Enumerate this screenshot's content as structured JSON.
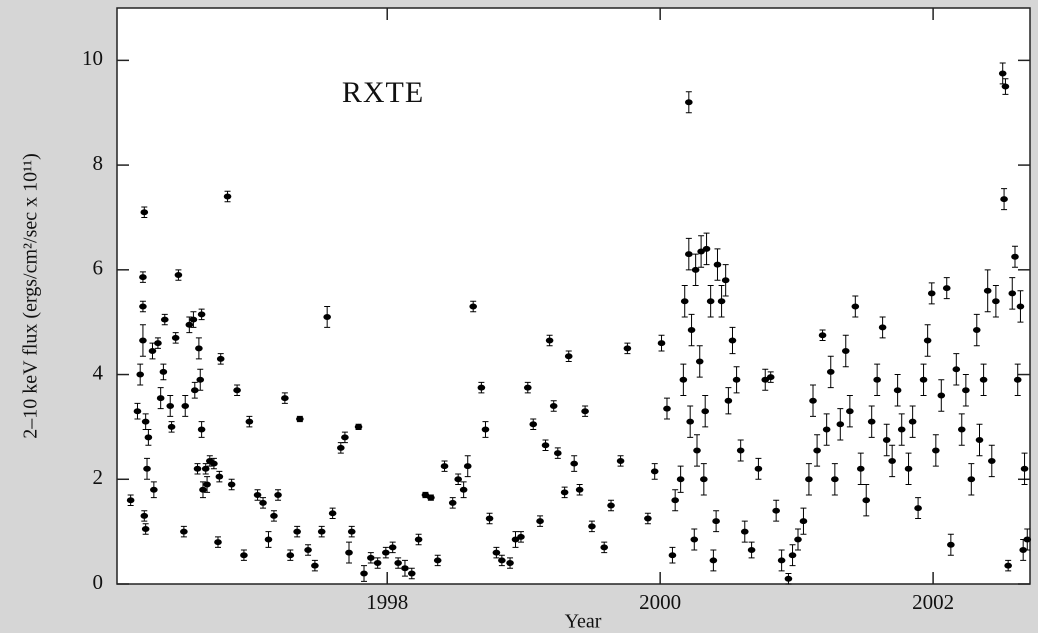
{
  "chart_data": {
    "type": "scatter",
    "annotation": "RXTE",
    "x_label": "Year",
    "y_label": "2–10 keV flux  (ergs/cm²/sec x 10¹¹)",
    "xlim": [
      1996.02,
      2002.71
    ],
    "ylim": [
      0,
      11
    ],
    "xticks": [
      1998,
      2000,
      2002
    ],
    "yticks": [
      0,
      2,
      4,
      6,
      8,
      10
    ],
    "grid": false,
    "color": "#000000",
    "x": [
      1996.12,
      1996.17,
      1996.19,
      1996.21,
      1996.21,
      1996.22,
      1996.21,
      1996.23,
      1996.22,
      1996.23,
      1996.24,
      1996.25,
      1996.28,
      1996.29,
      1996.32,
      1996.34,
      1996.36,
      1996.37,
      1996.41,
      1996.42,
      1996.45,
      1996.47,
      1996.51,
      1996.52,
      1996.55,
      1996.58,
      1996.59,
      1996.61,
      1996.62,
      1996.63,
      1996.64,
      1996.64,
      1996.65,
      1996.67,
      1996.68,
      1996.7,
      1996.73,
      1996.76,
      1996.77,
      1996.78,
      1996.83,
      1996.86,
      1996.9,
      1996.95,
      1996.99,
      1997.05,
      1997.09,
      1997.13,
      1997.17,
      1997.2,
      1997.25,
      1997.29,
      1997.34,
      1997.36,
      1997.42,
      1997.47,
      1997.52,
      1997.56,
      1997.6,
      1997.66,
      1997.69,
      1997.72,
      1997.74,
      1997.79,
      1997.83,
      1997.88,
      1997.93,
      1997.99,
      1998.04,
      1998.08,
      1998.13,
      1998.18,
      1998.23,
      1998.28,
      1998.32,
      1998.37,
      1998.42,
      1998.48,
      1998.52,
      1998.56,
      1998.59,
      1998.63,
      1998.69,
      1998.72,
      1998.75,
      1998.8,
      1998.84,
      1998.9,
      1998.94,
      1998.98,
      1999.03,
      1999.07,
      1999.12,
      1999.16,
      1999.19,
      1999.22,
      1999.25,
      1999.3,
      1999.33,
      1999.37,
      1999.41,
      1999.45,
      1999.5,
      1999.59,
      1999.64,
      1999.71,
      1999.76,
      1999.91,
      1999.96,
      2000.01,
      2000.05,
      2000.09,
      2000.11,
      2000.15,
      2000.17,
      2000.18,
      2000.21,
      2000.21,
      2000.22,
      2000.23,
      2000.25,
      2000.26,
      2000.27,
      2000.29,
      2000.3,
      2000.32,
      2000.33,
      2000.34,
      2000.37,
      2000.39,
      2000.41,
      2000.42,
      2000.45,
      2000.48,
      2000.5,
      2000.53,
      2000.56,
      2000.59,
      2000.62,
      2000.67,
      2000.72,
      2000.77,
      2000.81,
      2000.85,
      2000.89,
      2000.94,
      2000.97,
      2001.01,
      2001.05,
      2001.09,
      2001.12,
      2001.15,
      2001.19,
      2001.22,
      2001.25,
      2001.28,
      2001.32,
      2001.36,
      2001.39,
      2001.43,
      2001.47,
      2001.51,
      2001.55,
      2001.59,
      2001.63,
      2001.66,
      2001.7,
      2001.74,
      2001.77,
      2001.82,
      2001.85,
      2001.89,
      2001.93,
      2001.96,
      2001.99,
      2002.02,
      2002.06,
      2002.1,
      2002.13,
      2002.17,
      2002.21,
      2002.24,
      2002.28,
      2002.32,
      2002.34,
      2002.37,
      2002.4,
      2002.43,
      2002.46,
      2002.51,
      2002.53,
      2002.52,
      2002.55,
      2002.58,
      2002.6,
      2002.62,
      2002.64,
      2002.66,
      2002.67,
      2002.69
    ],
    "values": [
      1.6,
      3.3,
      4.0,
      4.65,
      5.86,
      7.1,
      5.3,
      3.1,
      1.3,
      1.05,
      2.2,
      2.8,
      4.45,
      1.8,
      4.6,
      3.55,
      4.05,
      5.05,
      3.4,
      3.0,
      4.7,
      5.9,
      1.0,
      3.4,
      4.95,
      5.05,
      3.7,
      2.2,
      4.5,
      3.9,
      5.15,
      2.95,
      1.8,
      2.2,
      1.9,
      2.35,
      2.3,
      0.8,
      2.05,
      4.3,
      7.4,
      1.9,
      3.7,
      0.55,
      3.1,
      1.7,
      1.55,
      0.85,
      1.3,
      1.7,
      3.55,
      0.55,
      1.0,
      3.15,
      0.65,
      0.35,
      1.0,
      5.1,
      1.35,
      2.6,
      2.8,
      0.6,
      1.0,
      3.0,
      0.2,
      0.5,
      0.4,
      0.6,
      0.7,
      0.4,
      0.3,
      0.2,
      0.85,
      1.7,
      1.65,
      0.45,
      2.25,
      1.55,
      2.0,
      1.8,
      2.25,
      5.3,
      3.75,
      2.95,
      1.25,
      0.6,
      0.45,
      0.4,
      0.85,
      0.9,
      3.75,
      3.05,
      1.2,
      2.65,
      4.65,
      3.4,
      2.5,
      1.75,
      4.35,
      2.3,
      1.8,
      3.3,
      1.1,
      0.7,
      1.5,
      2.35,
      4.5,
      1.25,
      2.15,
      4.6,
      3.35,
      0.55,
      1.6,
      2.0,
      3.9,
      5.4,
      6.3,
      9.2,
      3.1,
      4.85,
      0.85,
      6.0,
      2.55,
      4.25,
      6.35,
      2.0,
      3.3,
      6.4,
      5.4,
      0.45,
      1.2,
      6.1,
      5.4,
      5.8,
      3.5,
      4.65,
      3.9,
      2.55,
      1.0,
      0.65,
      2.2,
      3.9,
      3.95,
      1.4,
      0.45,
      0.1,
      0.55,
      0.85,
      1.2,
      2.0,
      3.5,
      2.55,
      4.75,
      2.95,
      4.05,
      2.0,
      3.05,
      4.45,
      3.3,
      5.3,
      2.2,
      1.6,
      3.1,
      3.9,
      4.9,
      2.75,
      2.35,
      3.7,
      2.95,
      2.2,
      3.1,
      1.45,
      3.9,
      4.65,
      5.55,
      2.55,
      3.6,
      5.65,
      0.75,
      4.1,
      2.95,
      3.7,
      2.0,
      4.85,
      2.75,
      3.9,
      5.6,
      2.35,
      5.4,
      9.75,
      9.5,
      7.35,
      0.35,
      5.55,
      6.25,
      3.9,
      5.3,
      0.65,
      2.2,
      0.85
    ],
    "errors": [
      0.1,
      0.15,
      0.2,
      0.3,
      0.1,
      0.1,
      0.1,
      0.15,
      0.1,
      0.1,
      0.2,
      0.15,
      0.15,
      0.15,
      0.1,
      0.2,
      0.15,
      0.1,
      0.2,
      0.1,
      0.1,
      0.1,
      0.1,
      0.2,
      0.15,
      0.15,
      0.15,
      0.1,
      0.2,
      0.2,
      0.1,
      0.15,
      0.15,
      0.1,
      0.15,
      0.1,
      0.1,
      0.1,
      0.1,
      0.1,
      0.1,
      0.1,
      0.1,
      0.1,
      0.1,
      0.1,
      0.1,
      0.15,
      0.1,
      0.1,
      0.1,
      0.1,
      0.1,
      0.05,
      0.1,
      0.1,
      0.1,
      0.2,
      0.1,
      0.1,
      0.1,
      0.2,
      0.1,
      0.05,
      0.15,
      0.1,
      0.1,
      0.1,
      0.1,
      0.1,
      0.15,
      0.1,
      0.1,
      0.05,
      0.05,
      0.1,
      0.1,
      0.1,
      0.1,
      0.15,
      0.2,
      0.1,
      0.1,
      0.15,
      0.1,
      0.1,
      0.1,
      0.1,
      0.15,
      0.1,
      0.1,
      0.1,
      0.1,
      0.1,
      0.1,
      0.1,
      0.1,
      0.1,
      0.1,
      0.15,
      0.1,
      0.1,
      0.1,
      0.1,
      0.1,
      0.1,
      0.1,
      0.1,
      0.15,
      0.15,
      0.2,
      0.15,
      0.2,
      0.25,
      0.3,
      0.3,
      0.3,
      0.2,
      0.3,
      0.3,
      0.2,
      0.3,
      0.3,
      0.3,
      0.3,
      0.3,
      0.3,
      0.3,
      0.3,
      0.2,
      0.2,
      0.3,
      0.3,
      0.3,
      0.25,
      0.25,
      0.25,
      0.2,
      0.2,
      0.15,
      0.2,
      0.2,
      0.1,
      0.2,
      0.2,
      0.1,
      0.2,
      0.2,
      0.25,
      0.3,
      0.3,
      0.3,
      0.1,
      0.3,
      0.3,
      0.3,
      0.3,
      0.3,
      0.3,
      0.2,
      0.3,
      0.3,
      0.3,
      0.3,
      0.2,
      0.3,
      0.3,
      0.3,
      0.3,
      0.3,
      0.3,
      0.2,
      0.3,
      0.3,
      0.2,
      0.3,
      0.3,
      0.2,
      0.2,
      0.3,
      0.3,
      0.3,
      0.3,
      0.3,
      0.3,
      0.3,
      0.4,
      0.3,
      0.3,
      0.2,
      0.15,
      0.2,
      0.1,
      0.3,
      0.2,
      0.3,
      0.3,
      0.2,
      0.3,
      0.2
    ]
  }
}
